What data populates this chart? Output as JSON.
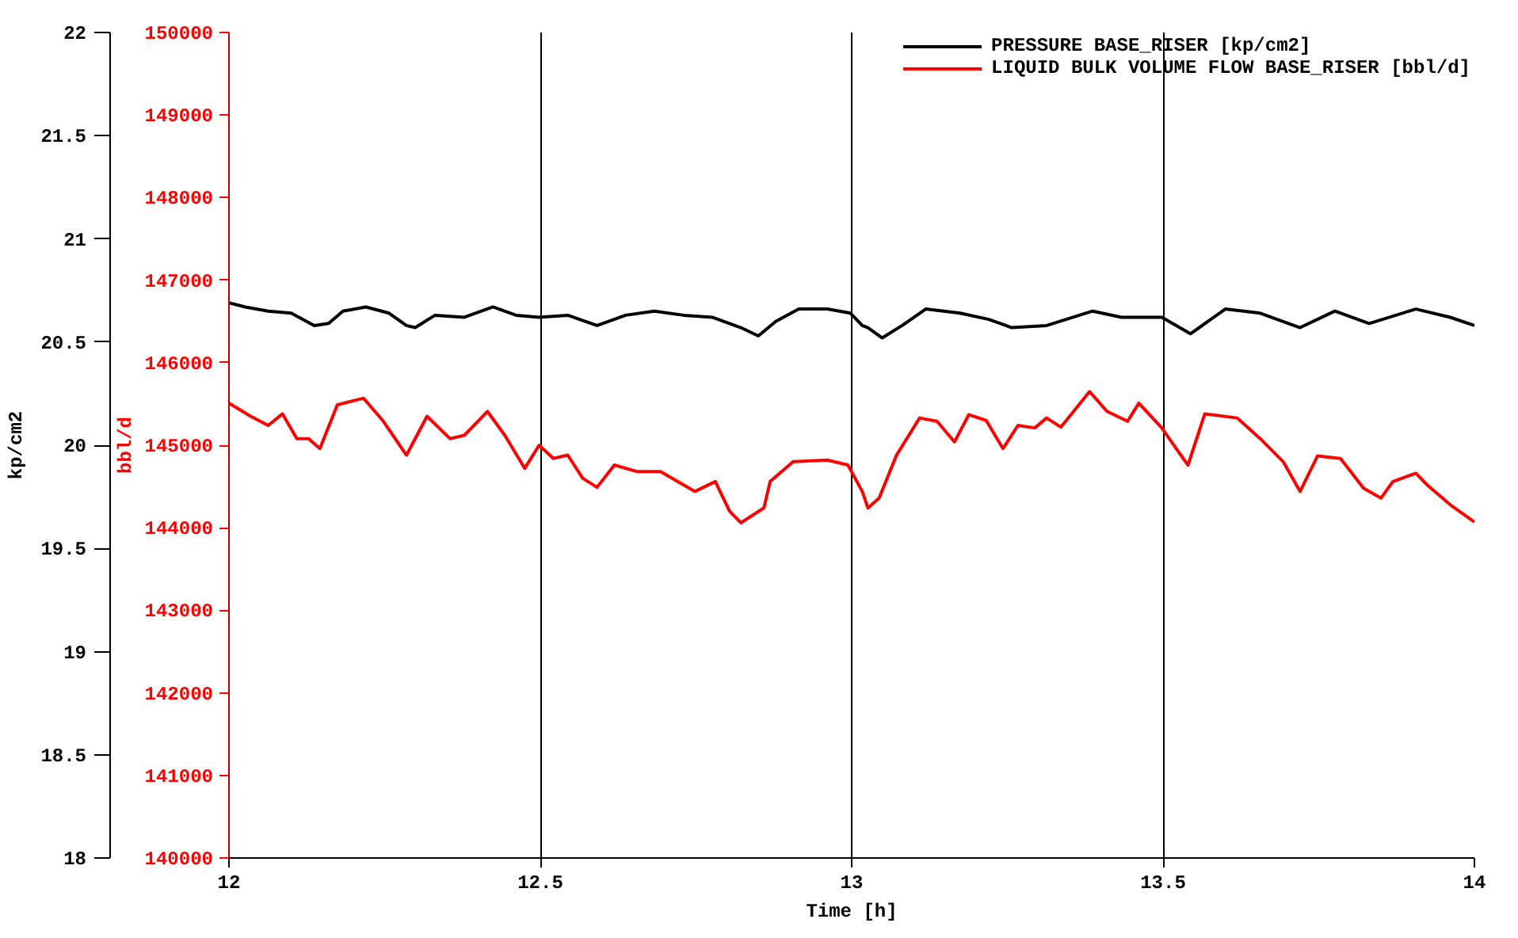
{
  "chart_data": {
    "type": "line",
    "xlabel": "Time [h]",
    "ylabel": "kp/cm2",
    "y2label": "bbl/d",
    "xlim": [
      12,
      14
    ],
    "xticks": [
      12,
      12.5,
      13,
      13.5,
      14
    ],
    "ylim": [
      18,
      22
    ],
    "yticks": [
      18,
      18.5,
      19,
      19.5,
      20,
      20.5,
      21,
      21.5,
      22
    ],
    "y2lim": [
      140000,
      150000
    ],
    "y2ticks": [
      140000,
      141000,
      142000,
      143000,
      144000,
      145000,
      146000,
      147000,
      148000,
      149000,
      150000
    ],
    "grid": "x",
    "legend": "top right",
    "marker": "none",
    "line_style": "solid",
    "series": [
      {
        "name": "PRESSURE BASE_RISER [kp/cm2]",
        "color": "#000000",
        "x": [
          12.0,
          12.026,
          12.063,
          12.1,
          12.137,
          12.16,
          12.183,
          12.22,
          12.257,
          12.285,
          12.299,
          12.331,
          12.378,
          12.424,
          12.461,
          12.498,
          12.544,
          12.591,
          12.637,
          12.683,
          12.73,
          12.776,
          12.822,
          12.85,
          12.878,
          12.915,
          12.961,
          12.998,
          13.017,
          13.026,
          13.049,
          13.081,
          13.119,
          13.174,
          13.22,
          13.257,
          13.313,
          13.387,
          13.433,
          13.498,
          13.544,
          13.6,
          13.656,
          13.72,
          13.776,
          13.831,
          13.906,
          13.961,
          14.0
        ],
        "values": [
          20.69,
          20.67,
          20.65,
          20.64,
          20.58,
          20.59,
          20.65,
          20.67,
          20.64,
          20.58,
          20.57,
          20.63,
          20.62,
          20.67,
          20.63,
          20.62,
          20.63,
          20.58,
          20.63,
          20.65,
          20.63,
          20.62,
          20.57,
          20.53,
          20.6,
          20.66,
          20.66,
          20.64,
          20.58,
          20.57,
          20.52,
          20.58,
          20.66,
          20.64,
          20.61,
          20.57,
          20.58,
          20.65,
          20.62,
          20.62,
          20.54,
          20.66,
          20.64,
          20.57,
          20.65,
          20.59,
          20.66,
          20.62,
          20.58
        ]
      },
      {
        "name": "LIQUID BULK VOLUME FLOW BASE_RISER [bbl/d]",
        "color": "#ff0000",
        "axis": "y2",
        "x": [
          12.0,
          12.035,
          12.063,
          12.086,
          12.109,
          12.128,
          12.146,
          12.174,
          12.216,
          12.248,
          12.285,
          12.318,
          12.355,
          12.378,
          12.415,
          12.443,
          12.475,
          12.498,
          12.521,
          12.544,
          12.568,
          12.591,
          12.619,
          12.656,
          12.693,
          12.748,
          12.781,
          12.804,
          12.822,
          12.859,
          12.869,
          12.906,
          12.961,
          12.994,
          13.017,
          13.026,
          13.044,
          13.072,
          13.109,
          13.137,
          13.165,
          13.188,
          13.216,
          13.243,
          13.267,
          13.294,
          13.313,
          13.336,
          13.382,
          13.41,
          13.443,
          13.461,
          13.498,
          13.521,
          13.54,
          13.567,
          13.619,
          13.656,
          13.693,
          13.72,
          13.748,
          13.785,
          13.822,
          13.85,
          13.869,
          13.906,
          13.924,
          13.961,
          14.0
        ],
        "values": [
          145510,
          145350,
          145240,
          145380,
          145080,
          145080,
          144960,
          145490,
          145570,
          145290,
          144880,
          145350,
          145080,
          145120,
          145410,
          145120,
          144720,
          145000,
          144840,
          144880,
          144600,
          144490,
          144760,
          144680,
          144680,
          144440,
          144560,
          144200,
          144060,
          144240,
          144560,
          144800,
          144820,
          144760,
          144440,
          144240,
          144360,
          144880,
          145330,
          145290,
          145040,
          145370,
          145300,
          144960,
          145240,
          145210,
          145330,
          145220,
          145650,
          145410,
          145290,
          145510,
          145210,
          144960,
          144760,
          145380,
          145330,
          145080,
          144800,
          144440,
          144870,
          144840,
          144480,
          144360,
          144560,
          144660,
          144520,
          144280,
          144070
        ]
      }
    ]
  }
}
